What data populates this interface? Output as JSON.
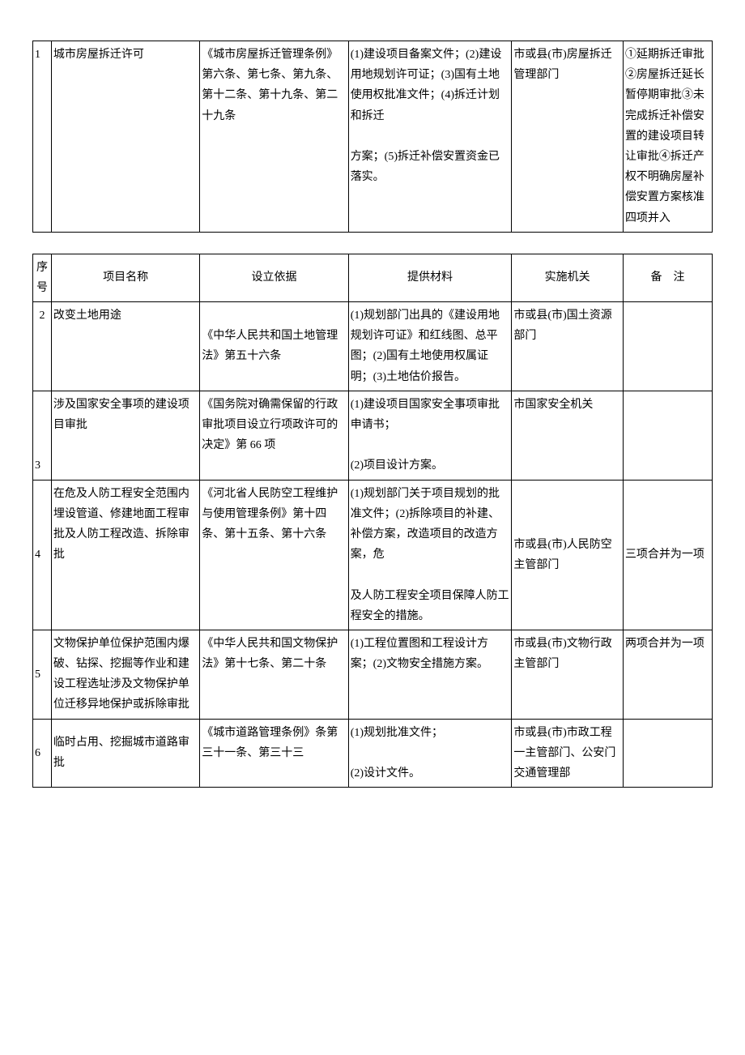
{
  "headers": {
    "seq": "序号",
    "name": "项目名称",
    "basis": "设立依据",
    "material": "提供材料",
    "agency": "实施机关",
    "note": "备　注"
  },
  "table1": {
    "rows": [
      {
        "seq": "1",
        "name": "城市房屋拆迁许可",
        "basis": "《城市房屋拆迁管理条例》第六条、第七条、第九条、第十二条、第十九条、第二十九条",
        "material": "(1)建设项目备案文件；(2)建设用地规划许可证；(3)国有土地使用权批准文件；(4)拆迁计划和拆迁\n\n方案；(5)拆迁补偿安置资金已落实。",
        "agency": "市或县(市)房屋拆迁管理部门",
        "note": "①延期拆迁审批②房屋拆迁延长暂停期审批③未完成拆迁补偿安置的建设项目转让审批④拆迁产权不明确房屋补偿安置方案核准四项并入"
      }
    ]
  },
  "table2": {
    "rows": [
      {
        "seq": "2",
        "name": "改变土地用途",
        "basis": "《中华人民共和国土地管理法》第五十六条",
        "material": "(1)规划部门出具的《建设用地规划许可证》和红线图、总平图；(2)国有土地使用权属证明；(3)土地估价报告。",
        "agency": "市或县(市)国土资源部门",
        "note": ""
      },
      {
        "seq": "3",
        "name": "涉及国家安全事项的建设项目审批",
        "basis": "《国务院对确需保留的行政审批项目设立行项政许可的决定》第 66 项",
        "material": "(1)建设项目国家安全事项审批申请书；\n\n(2)项目设计方案。",
        "agency": "市国家安全机关",
        "note": ""
      },
      {
        "seq": "4",
        "name": "在危及人防工程安全范围内埋设管道、修建地面工程审批及人防工程改造、拆除审批",
        "basis": "《河北省人民防空工程维护与使用管理条例》第十四条、第十五条、第十六条",
        "material": "(1)规划部门关于项目规划的批准文件；(2)拆除项目的补建、补偿方案，改造项目的改造方案，危\n\n及人防工程安全项目保障人防工程安全的措施。",
        "agency": "市或县(市)人民防空主管部门",
        "note": "三项合并为一项"
      },
      {
        "seq": "5",
        "name": "文物保护单位保护范围内爆破、钻探、挖掘等作业和建设工程选址涉及文物保护单位迁移异地保护或拆除审批",
        "basis": "《中华人民共和国文物保护法》第十七条、第二十条",
        "material": "(1)工程位置图和工程设计方案；(2)文物安全措施方案。",
        "agency": "市或县(市)文物行政主管部门",
        "note": "两项合并为一项"
      },
      {
        "seq": "6",
        "name": "临时占用、挖掘城市道路审批",
        "basis": "《城市道路管理条例》条第三十一条、第三十三",
        "material": "(1)规划批准文件；\n\n(2)设计文件。",
        "agency": "市或县(市)市政工程一主管部门、公安门交通管理部",
        "note": ""
      }
    ]
  }
}
